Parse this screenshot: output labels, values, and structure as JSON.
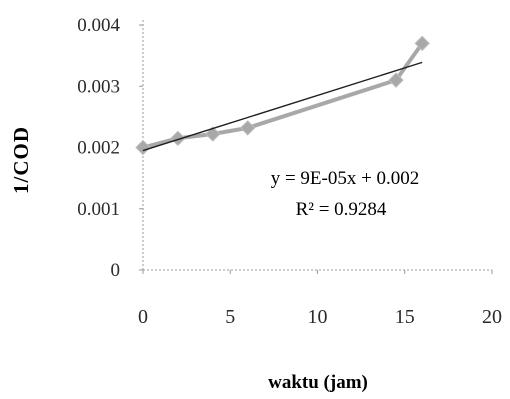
{
  "chart_data": {
    "type": "scatter",
    "xlabel": "waktu (jam)",
    "ylabel": "1/COD",
    "xlim": [
      0,
      20
    ],
    "ylim": [
      0,
      0.004
    ],
    "x_ticks": [
      "0",
      "5",
      "10",
      "15",
      "20"
    ],
    "y_ticks": [
      "0",
      "0.001",
      "0.002",
      "0.003",
      "0.004"
    ],
    "grid": false,
    "legend": "none",
    "series": [
      {
        "x": [
          0,
          2,
          4,
          6,
          14.5,
          16
        ],
        "y": [
          0.002,
          0.00215,
          0.00222,
          0.00232,
          0.0031,
          0.0037
        ],
        "color": "#a8a8a8",
        "marker": "diamond",
        "connected": true
      }
    ],
    "trendline": {
      "slope": 9e-05,
      "intercept": 0.00195,
      "x_range": [
        0,
        16
      ],
      "color": "#1e1e1e"
    },
    "annotations": {
      "equation": "y = 9E-05x + 0.002",
      "r_squared": "R² = 0.9284"
    }
  }
}
